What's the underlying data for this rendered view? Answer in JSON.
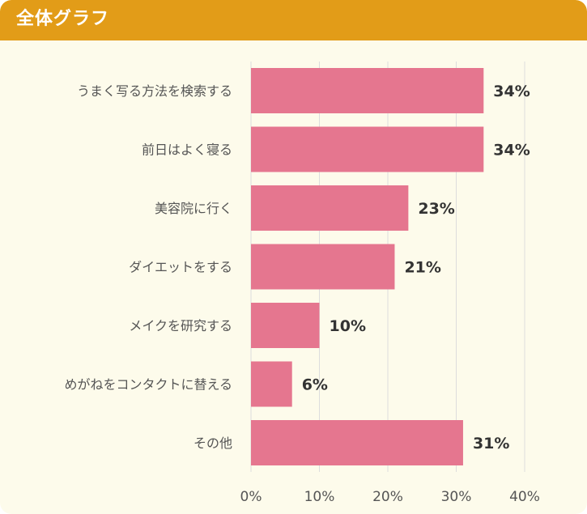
{
  "header": {
    "title": "全体グラフ"
  },
  "colors": {
    "header_bg": "#e29c18",
    "panel_bg": "#fdfbeb",
    "bar": "#e5768f",
    "grid": "#dddddd",
    "label_text": "#555555",
    "value_text": "#333333"
  },
  "chart_data": {
    "type": "bar",
    "orientation": "horizontal",
    "categories": [
      "うまく写る方法を検索する",
      "前日はよく寝る",
      "美容院に行く",
      "ダイエットをする",
      "メイクを研究する",
      "めがねをコンタクトに替える",
      "その他"
    ],
    "values": [
      34,
      34,
      23,
      21,
      10,
      6,
      31
    ],
    "value_labels": [
      "34%",
      "34%",
      "23%",
      "21%",
      "10%",
      "6%",
      "31%"
    ],
    "xlim": [
      0,
      40
    ],
    "x_ticks": [
      0,
      10,
      20,
      30,
      40
    ],
    "x_tick_labels": [
      "0%",
      "10%",
      "20%",
      "30%",
      "40%"
    ],
    "grid": true,
    "legend": "none"
  }
}
